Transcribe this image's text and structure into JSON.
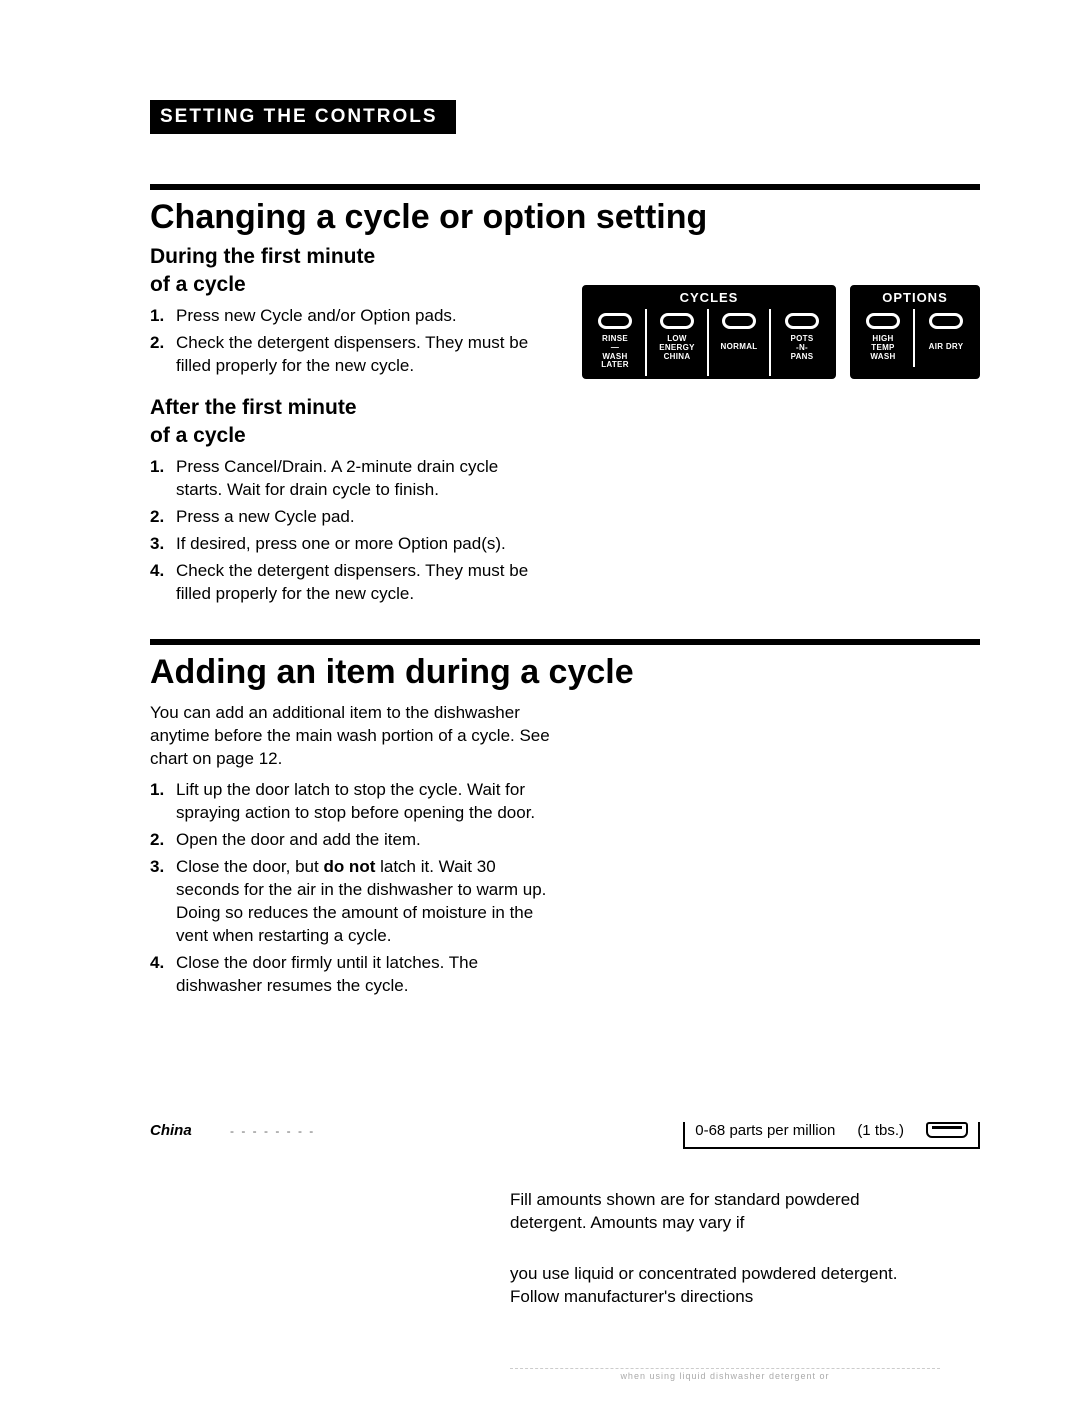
{
  "section_bar": "SETTING THE CONTROLS",
  "s1": {
    "title": "Changing a cycle or option setting",
    "sub_a_l1": "During the first minute",
    "sub_a_l2": "of a cycle",
    "list_a": [
      "Press new Cycle and/or Option pads.",
      "Check the detergent dispensers. They must be filled properly for the new cycle."
    ],
    "sub_b_l1": "After the first minute",
    "sub_b_l2": "of a cycle",
    "list_b": [
      "Press Cancel/Drain. A 2-minute drain cycle starts. Wait for drain cycle to finish.",
      "Press a new Cycle pad.",
      "If desired, press one or more Option pad(s).",
      "Check the detergent dispensers. They must be filled properly for the new cycle."
    ]
  },
  "panel": {
    "cycles_header": "CYCLES",
    "options_header": "OPTIONS",
    "cycles": [
      "RINSE\n—\nWASH\nLATER",
      "LOW\nENERGY\nCHINA",
      "NORMAL",
      "POTS\n-N-\nPANS"
    ],
    "options": [
      "HIGH\nTEMP\nWASH",
      "AIR DRY"
    ]
  },
  "s2": {
    "title": "Adding an item during a cycle",
    "intro": "You can add an additional item to the dishwasher anytime before the main wash portion of a cycle. See chart on page 12.",
    "list": [
      "Lift up the door latch to stop the cycle. Wait for spraying action to stop before opening the door.",
      "Open the door and add the item.",
      "Close the door, but do not latch it. Wait 30 seconds for the air in the dishwasher to warm up. Doing so reduces the amount of moisture in the vent when restarting a cycle.",
      "Close the door firmly until it latches. The dishwasher resumes the cycle."
    ],
    "bold_in_3_phrase": "do not"
  },
  "frag": {
    "china": "China",
    "ppm": "0-68 parts per million",
    "tbs": "(1 tbs.)",
    "para1": "Fill amounts shown are for standard powdered detergent. Amounts may vary if",
    "para2": "you use liquid or concentrated powdered detergent. Follow manufacturer's directions",
    "tiny": "when using liquid dishwasher detergent or"
  }
}
